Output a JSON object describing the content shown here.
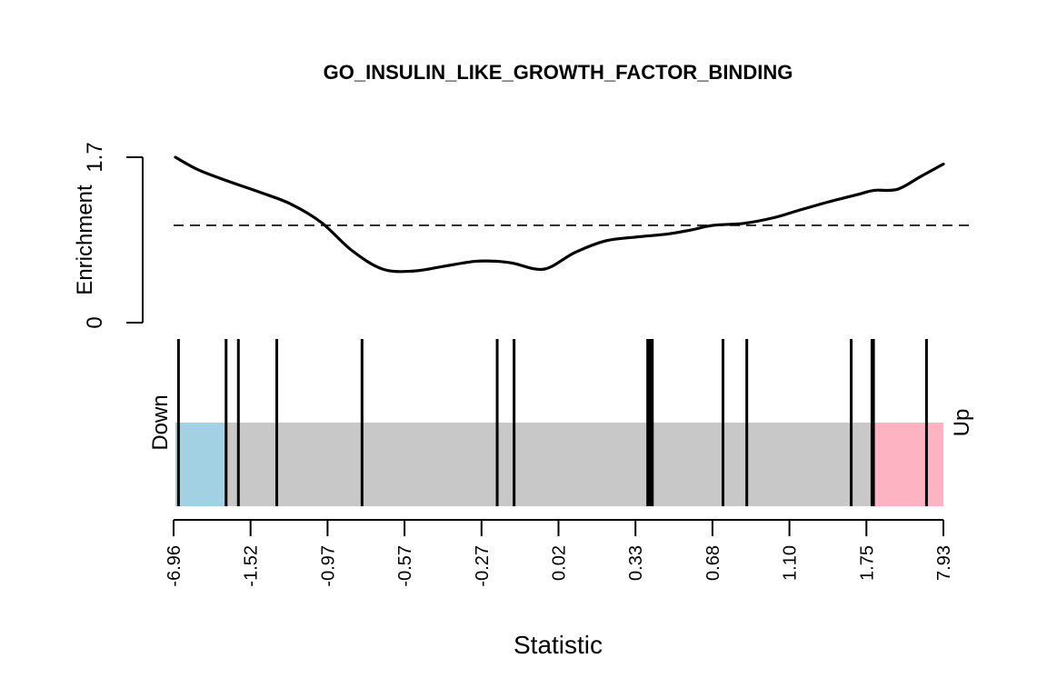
{
  "chart_data": {
    "type": "line",
    "title": "GO_INSULIN_LIKE_GROWTH_FACTOR_BINDING",
    "xlabel": "Statistic",
    "ylabel": "Enrichment",
    "y_ticks": [
      "0",
      "1.7"
    ],
    "ylim": [
      0,
      1.7
    ],
    "reference_line": 1.0,
    "x_tick_labels": [
      "-6.96",
      "-1.52",
      "-0.97",
      "-0.57",
      "-0.27",
      "0.02",
      "0.33",
      "0.68",
      "1.10",
      "1.75",
      "7.93"
    ],
    "enrichment_curve": {
      "x_rank": [
        0,
        0.03,
        0.07,
        0.11,
        0.15,
        0.19,
        0.23,
        0.27,
        0.31,
        0.35,
        0.39,
        0.42,
        0.44,
        0.48,
        0.52,
        0.56,
        0.6,
        0.64,
        0.67,
        0.7,
        0.74,
        0.78,
        0.81,
        0.85,
        0.89,
        0.91,
        0.94,
        0.97,
        1.0
      ],
      "y": [
        1.7,
        1.57,
        1.45,
        1.34,
        1.22,
        1.03,
        0.74,
        0.55,
        0.53,
        0.58,
        0.63,
        0.63,
        0.61,
        0.55,
        0.72,
        0.84,
        0.88,
        0.91,
        0.95,
        1.0,
        1.02,
        1.08,
        1.15,
        1.24,
        1.32,
        1.36,
        1.37,
        1.5,
        1.63
      ]
    },
    "barcode": {
      "down_label": "Down",
      "up_label": "Up",
      "down_color": "#a2d1e3",
      "up_color": "#fdb3c1",
      "middle_color": "#c8c8c8",
      "down_region_end_rank": 0.065,
      "up_region_start_rank": 0.905,
      "gene_ranks": [
        0.004,
        0.066,
        0.082,
        0.132,
        0.243,
        0.419,
        0.441,
        0.615,
        0.618,
        0.621,
        0.713,
        0.744,
        0.88,
        0.907,
        0.909,
        0.978
      ]
    }
  }
}
